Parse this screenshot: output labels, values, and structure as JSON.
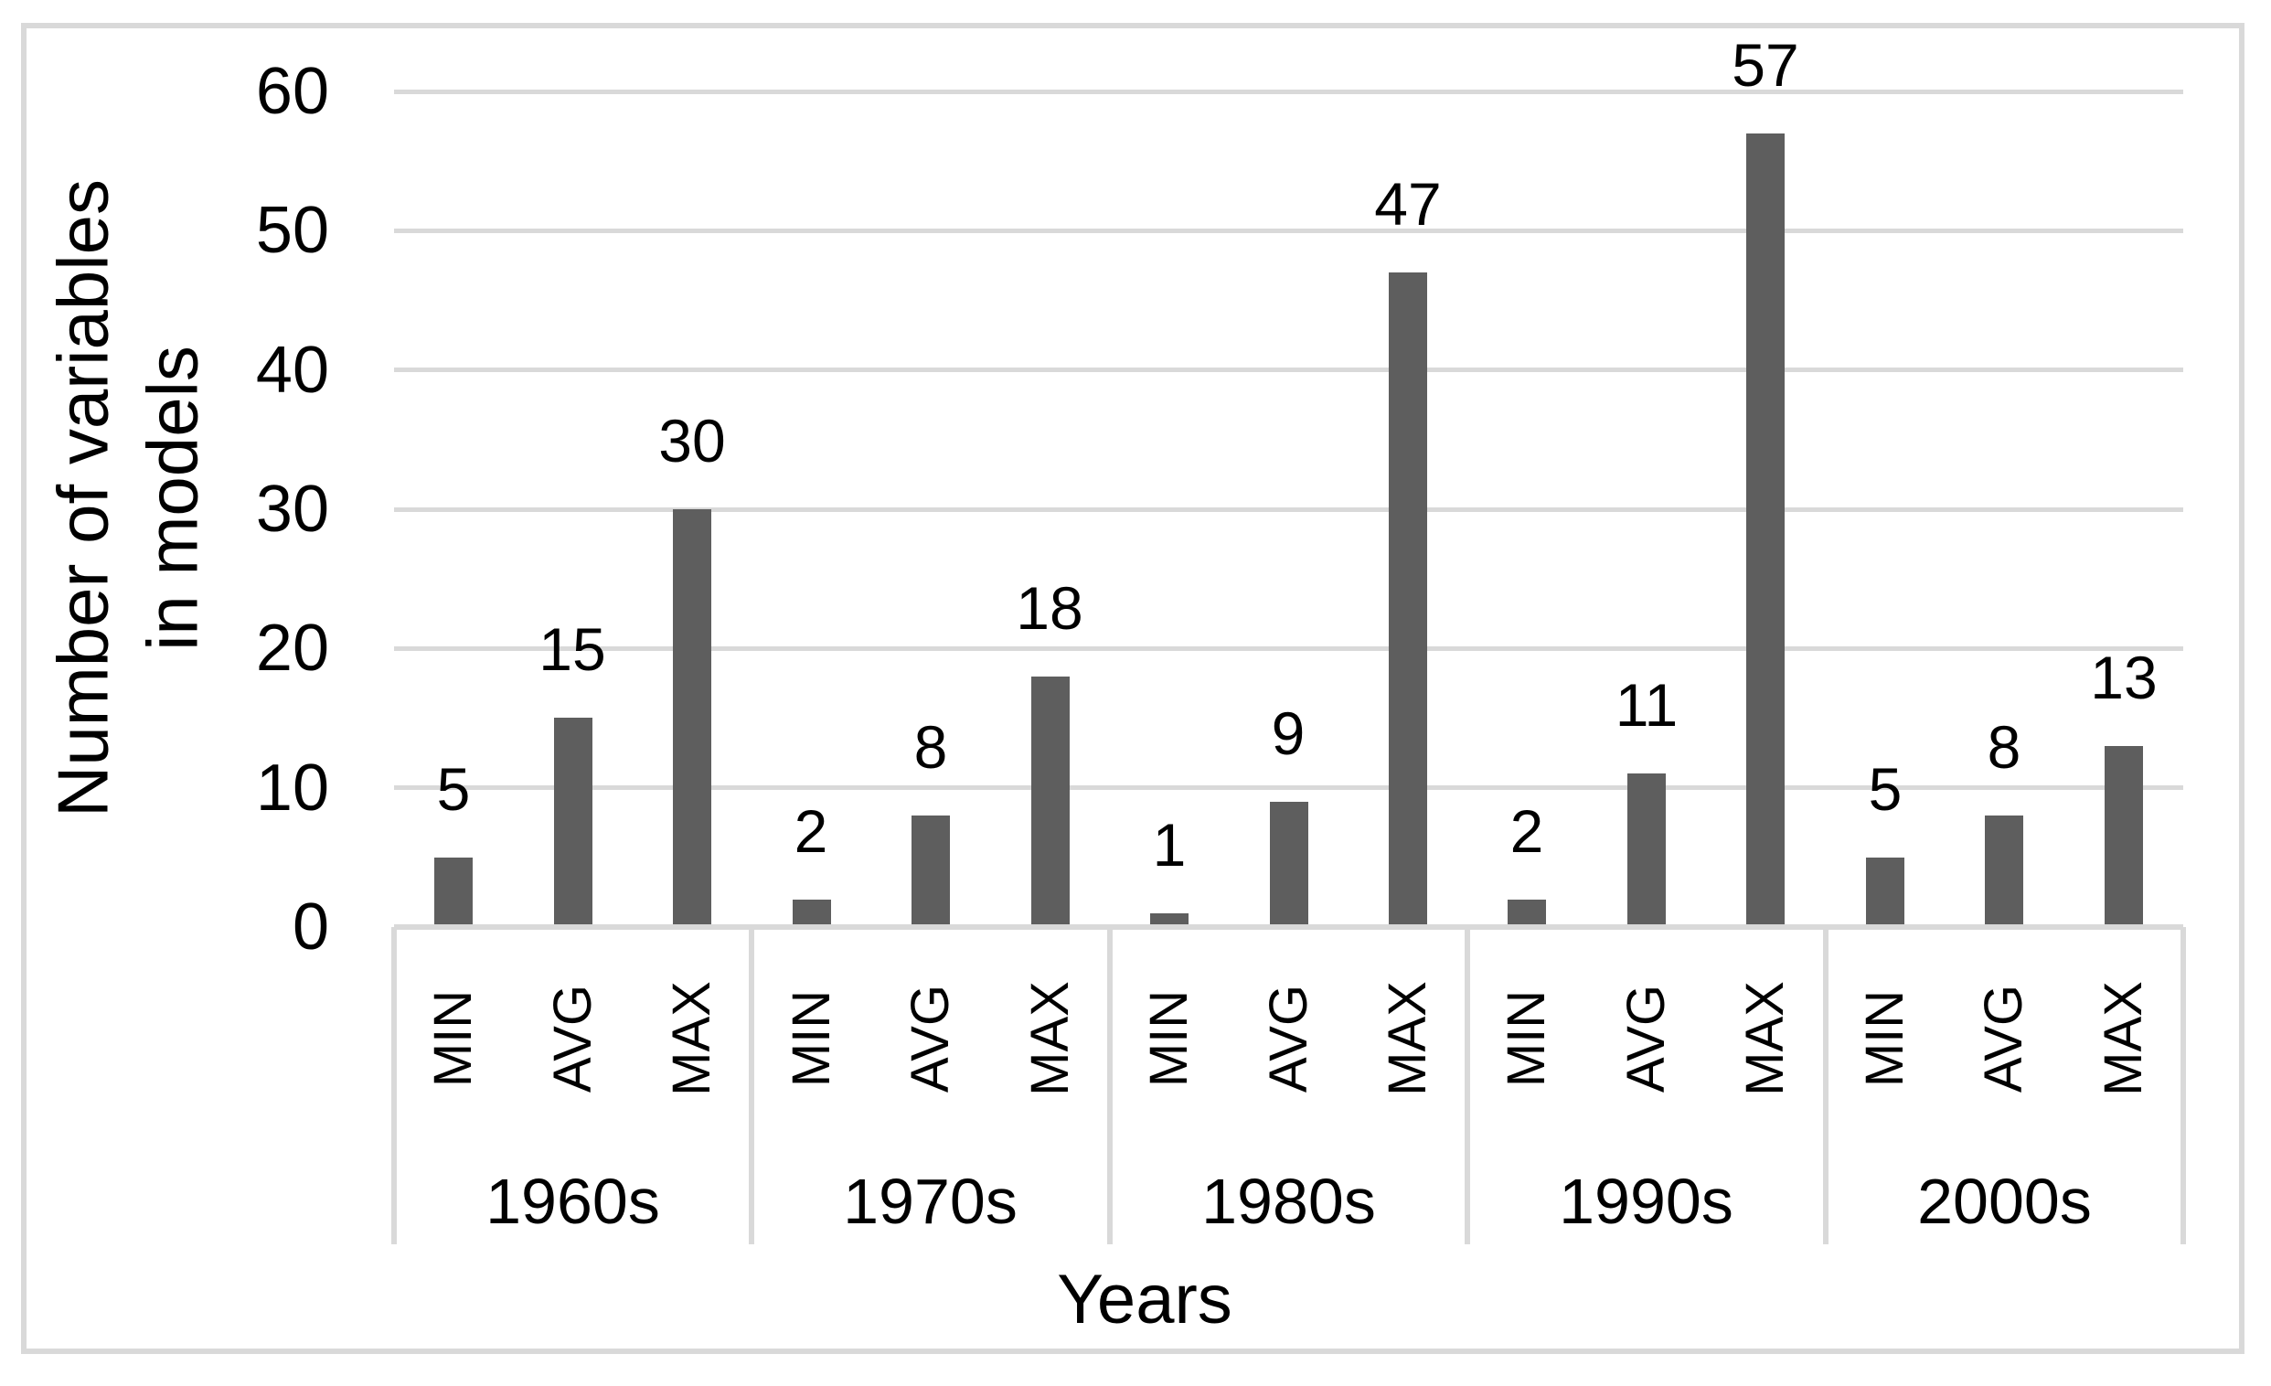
{
  "chart_data": {
    "type": "bar",
    "title": "",
    "xlabel": "Years",
    "ylabel_line1": "Number of variables",
    "ylabel_line2": "in models",
    "ylim": [
      0,
      60
    ],
    "ytick_interval": 10,
    "yticks": [
      60,
      50,
      40,
      30,
      20,
      10,
      0
    ],
    "grid": true,
    "legend": "none",
    "bar_color": "#5e5e5e",
    "gridline_color": "#d9d9d9",
    "frame_color": "#d9d9d9",
    "sub_categories": [
      "MIN",
      "AVG",
      "MAX"
    ],
    "categories": [
      "1960s",
      "1970s",
      "1980s",
      "1990s",
      "2000s"
    ],
    "groups": [
      {
        "decade": "1960s",
        "bars": [
          {
            "stat": "MIN",
            "value": 5
          },
          {
            "stat": "AVG",
            "value": 15
          },
          {
            "stat": "MAX",
            "value": 30
          }
        ]
      },
      {
        "decade": "1970s",
        "bars": [
          {
            "stat": "MIN",
            "value": 2
          },
          {
            "stat": "AVG",
            "value": 8
          },
          {
            "stat": "MAX",
            "value": 18
          }
        ]
      },
      {
        "decade": "1980s",
        "bars": [
          {
            "stat": "MIN",
            "value": 1
          },
          {
            "stat": "AVG",
            "value": 9
          },
          {
            "stat": "MAX",
            "value": 47
          }
        ]
      },
      {
        "decade": "1990s",
        "bars": [
          {
            "stat": "MIN",
            "value": 2
          },
          {
            "stat": "AVG",
            "value": 11
          },
          {
            "stat": "MAX",
            "value": 57
          }
        ]
      },
      {
        "decade": "2000s",
        "bars": [
          {
            "stat": "MIN",
            "value": 5
          },
          {
            "stat": "AVG",
            "value": 8
          },
          {
            "stat": "MAX",
            "value": 13
          }
        ]
      }
    ]
  }
}
